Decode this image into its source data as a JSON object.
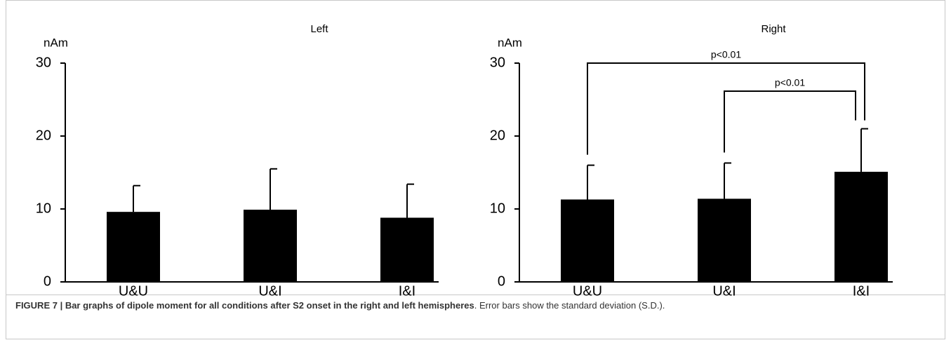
{
  "chart_data": [
    {
      "type": "bar",
      "title": "Left",
      "ylabel": "nAm",
      "categories": [
        "U&U",
        "U&I",
        "I&I"
      ],
      "values": [
        9.6,
        9.9,
        8.8
      ],
      "errors": [
        3.6,
        5.6,
        4.6
      ],
      "color": "#000000",
      "ylim": [
        0,
        30
      ],
      "yticks": [
        0,
        10,
        20,
        30
      ]
    },
    {
      "type": "bar",
      "title": "Right",
      "ylabel": "nAm",
      "categories": [
        "U&U",
        "U&I",
        "I&I"
      ],
      "values": [
        11.3,
        11.4,
        15.1
      ],
      "errors": [
        4.7,
        4.9,
        5.9
      ],
      "color": "#000000",
      "ylim": [
        0,
        30
      ],
      "yticks": [
        0,
        10,
        20,
        30
      ],
      "annotations": [
        {
          "text": "p<0.01",
          "between": [
            "U&U",
            "I&I"
          ]
        },
        {
          "text": "p<0.01",
          "between": [
            "U&I",
            "I&I"
          ]
        }
      ]
    }
  ],
  "caption": {
    "bold": "FIGURE 7 | Bar graphs of dipole moment for all conditions after S2 onset in the right and left hemispheres",
    "text": ". Error bars show the standard deviation (S.D.)."
  }
}
